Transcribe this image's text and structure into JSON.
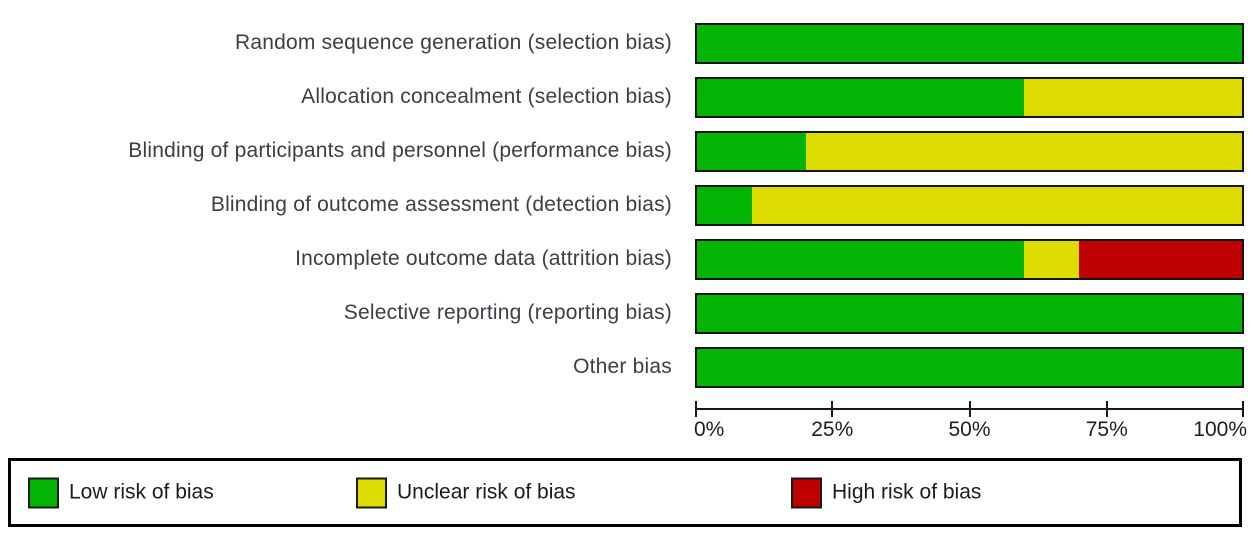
{
  "chart_data": {
    "type": "bar",
    "orientation": "horizontal",
    "stacked": true,
    "categories": [
      "Random sequence generation (selection bias)",
      "Allocation concealment (selection bias)",
      "Blinding of participants and personnel (performance bias)",
      "Blinding of outcome assessment (detection bias)",
      "Incomplete outcome data (attrition bias)",
      "Selective reporting (reporting bias)",
      "Other bias"
    ],
    "series": [
      {
        "name": "Low risk of bias",
        "color": "#04b404",
        "values": [
          100,
          60,
          20,
          10,
          60,
          100,
          100
        ]
      },
      {
        "name": "Unclear risk of bias",
        "color": "#dcdc00",
        "values": [
          0,
          40,
          80,
          90,
          10,
          0,
          0
        ]
      },
      {
        "name": "High risk of bias",
        "color": "#bf0000",
        "values": [
          0,
          0,
          0,
          0,
          30,
          0,
          0
        ]
      }
    ],
    "xlabel": "",
    "ylabel": "",
    "xlim": [
      0,
      100
    ],
    "x_ticks": [
      "0%",
      "25%",
      "50%",
      "75%",
      "100%"
    ],
    "grid": false,
    "legend_position": "bottom"
  },
  "legend": {
    "items": [
      {
        "label": "Low risk of bias",
        "color": "#04b404"
      },
      {
        "label": "Unclear risk of bias",
        "color": "#dcdc00"
      },
      {
        "label": "High risk of bias",
        "color": "#bf0000"
      }
    ]
  },
  "colors": {
    "low": "#04b404",
    "unclear": "#dcdc00",
    "high": "#bf0000",
    "bar_border": "#141414",
    "axis": "#1a1a1a",
    "background": "#ffffff"
  }
}
